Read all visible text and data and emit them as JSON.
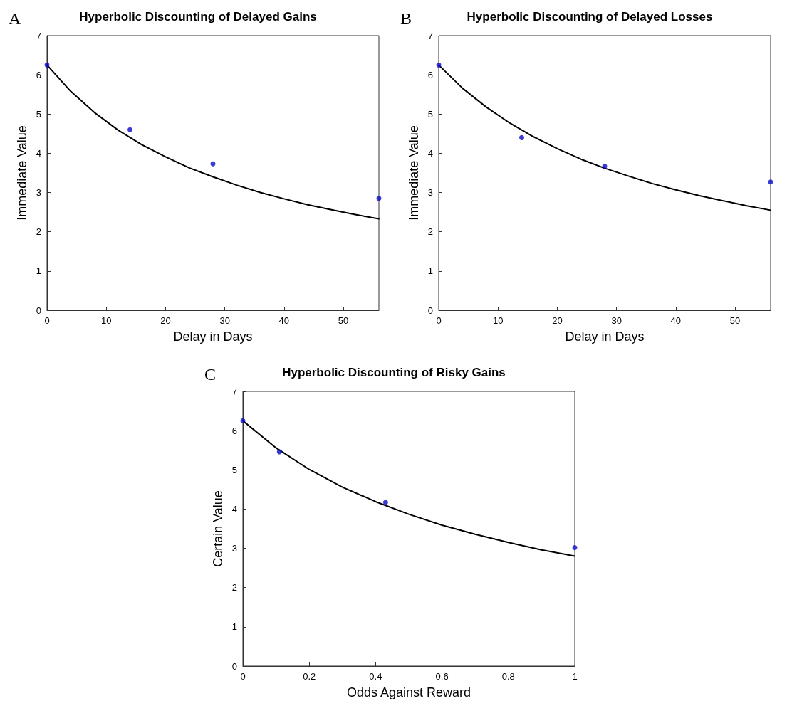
{
  "chart_data": [
    {
      "type": "scatter",
      "title": "Hyperbolic Discounting of Delayed Gains",
      "xlabel": "Delay in Days",
      "ylabel": "Immediate Value",
      "annotations": [
        "A"
      ],
      "xlim": [
        0,
        56
      ],
      "xticks": [
        0,
        10,
        20,
        30,
        40,
        50
      ],
      "ylim": [
        0,
        7
      ],
      "yticks": [
        0,
        1,
        2,
        3,
        4,
        5,
        6,
        7
      ],
      "grid": false,
      "series": [
        {
          "type": "line",
          "marker": "none",
          "color": "#000000",
          "x": [
            0,
            4,
            8,
            12,
            16,
            20,
            24,
            28,
            32,
            36,
            40,
            44,
            48,
            52,
            56
          ],
          "values": [
            6.25,
            5.58,
            5.04,
            4.59,
            4.22,
            3.91,
            3.63,
            3.4,
            3.19,
            3.0,
            2.84,
            2.69,
            2.56,
            2.44,
            2.33
          ]
        },
        {
          "marker": "circle",
          "color": "#0a0acc",
          "x": [
            0,
            14,
            28,
            56
          ],
          "values": [
            6.25,
            4.6,
            3.73,
            2.85
          ]
        }
      ]
    },
    {
      "type": "scatter",
      "title": "Hyperbolic Discounting of Delayed Losses",
      "xlabel": "Delay in Days",
      "ylabel": "Immediate Value",
      "annotations": [
        "B"
      ],
      "xlim": [
        0,
        56
      ],
      "xticks": [
        0,
        10,
        20,
        30,
        40,
        50
      ],
      "ylim": [
        0,
        7
      ],
      "yticks": [
        0,
        1,
        2,
        3,
        4,
        5,
        6,
        7
      ],
      "grid": false,
      "series": [
        {
          "type": "line",
          "marker": "none",
          "color": "#000000",
          "x": [
            0,
            4,
            8,
            12,
            16,
            20,
            24,
            28,
            32,
            36,
            40,
            44,
            48,
            52,
            56
          ],
          "values": [
            6.25,
            5.66,
            5.18,
            4.77,
            4.42,
            4.12,
            3.85,
            3.62,
            3.42,
            3.23,
            3.07,
            2.92,
            2.79,
            2.66,
            2.55
          ]
        },
        {
          "marker": "circle",
          "color": "#0a0acc",
          "x": [
            0,
            14,
            28,
            56
          ],
          "values": [
            6.25,
            4.4,
            3.67,
            3.27
          ]
        }
      ]
    },
    {
      "type": "scatter",
      "title": "Hyperbolic Discounting of Risky Gains",
      "xlabel": "Odds Against Reward",
      "ylabel": "Certain Value",
      "annotations": [
        "C"
      ],
      "xlim": [
        0,
        1
      ],
      "xticks": [
        0,
        0.2,
        0.4,
        0.6,
        0.8,
        1
      ],
      "ylim": [
        0,
        7
      ],
      "yticks": [
        0,
        1,
        2,
        3,
        4,
        5,
        6,
        7
      ],
      "grid": false,
      "series": [
        {
          "type": "line",
          "marker": "none",
          "color": "#000000",
          "x": [
            0,
            0.1,
            0.2,
            0.3,
            0.4,
            0.5,
            0.6,
            0.7,
            0.8,
            0.9,
            1
          ],
          "values": [
            6.25,
            5.56,
            5.01,
            4.56,
            4.19,
            3.87,
            3.59,
            3.36,
            3.15,
            2.96,
            2.8
          ]
        },
        {
          "marker": "circle",
          "color": "#0a0acc",
          "x": [
            0,
            0.11,
            0.43,
            1
          ],
          "values": [
            6.25,
            5.46,
            4.17,
            3.02
          ]
        }
      ]
    }
  ]
}
